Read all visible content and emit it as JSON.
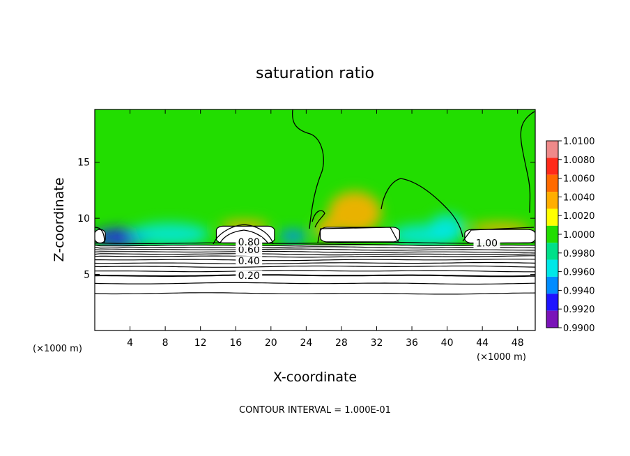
{
  "chart_data": {
    "type": "heatmap",
    "title": "saturation ratio",
    "xlabel": "X-coordinate",
    "ylabel": "Z-coordinate",
    "x_unit": "(×1000 m)",
    "z_unit": "(×1000 m)",
    "xlim": [
      0,
      50
    ],
    "ylim": [
      0,
      19.7
    ],
    "x_ticks": [
      4,
      8,
      12,
      16,
      20,
      24,
      28,
      32,
      36,
      40,
      44,
      48
    ],
    "y_ticks": [
      5,
      10,
      15
    ],
    "colorbar": {
      "min": 0.99,
      "max": 1.01,
      "ticks": [
        "1.0100",
        "1.0080",
        "1.0060",
        "1.0040",
        "1.0020",
        "1.0000",
        "0.9980",
        "0.9960",
        "0.9940",
        "0.9920",
        "0.9900"
      ],
      "colors": [
        "#ef8a8a",
        "#ff2a1a",
        "#ff6a00",
        "#ffae00",
        "#ffff00",
        "#22dd00",
        "#00e089",
        "#00e8e8",
        "#008cff",
        "#1e14ff",
        "#7a13b8"
      ]
    },
    "background_color": "#22dd00",
    "contour_labels": [
      {
        "text": "0.20",
        "x": 17.5,
        "z": 4.9
      },
      {
        "text": "0.40",
        "x": 17.5,
        "z": 6.2
      },
      {
        "text": "0.60",
        "x": 17.5,
        "z": 7.2
      },
      {
        "text": "0.80",
        "x": 17.5,
        "z": 7.9
      },
      {
        "text": "1.00",
        "x": 44.5,
        "z": 7.8
      }
    ],
    "contour_levels_below": [
      7.8,
      7.6,
      7.4,
      7.2,
      7.0,
      6.8,
      6.6,
      6.3,
      6.0,
      5.7,
      5.3,
      4.9,
      4.2,
      3.3
    ],
    "saturated_regions": [
      {
        "x0": 0,
        "x1": 1.2,
        "z0": 7.8,
        "z1": 9.0
      },
      {
        "x0": 13.8,
        "x1": 20.4,
        "z0": 7.8,
        "z1": 9.3
      },
      {
        "x0": 25.6,
        "x1": 34.6,
        "z0": 7.9,
        "z1": 9.2
      },
      {
        "x0": 42.0,
        "x1": 50,
        "z0": 7.8,
        "z1": 9.0
      }
    ],
    "warm_anomalies": [
      {
        "x": 29.5,
        "z": 10.5,
        "rx": 3.0,
        "rz": 1.9,
        "value": 1.0045
      },
      {
        "x": 17.0,
        "z": 9.3,
        "rx": 2.8,
        "rz": 0.5,
        "value": 1.003
      },
      {
        "x": 46.0,
        "z": 9.1,
        "rx": 3.5,
        "rz": 0.5,
        "value": 1.0035
      },
      {
        "x": 26.3,
        "z": 9.1,
        "rx": 1.2,
        "rz": 0.9,
        "value": 1.0035
      }
    ],
    "dry_anomalies": [
      {
        "x": 3.0,
        "z": 8.3,
        "rx": 3.3,
        "rz": 0.8,
        "value": 0.992
      },
      {
        "x": 8.5,
        "z": 8.6,
        "rx": 4.5,
        "rz": 1.0,
        "value": 0.996
      },
      {
        "x": 22.5,
        "z": 8.4,
        "rx": 1.6,
        "rz": 0.6,
        "value": 0.9945
      },
      {
        "x": 37.5,
        "z": 8.5,
        "rx": 4.0,
        "rz": 1.0,
        "value": 0.9955
      },
      {
        "x": 40.0,
        "z": 9.2,
        "rx": 2.0,
        "rz": 1.2,
        "value": 0.9965
      }
    ],
    "footer": "CONTOUR INTERVAL = 1.000E-01"
  }
}
